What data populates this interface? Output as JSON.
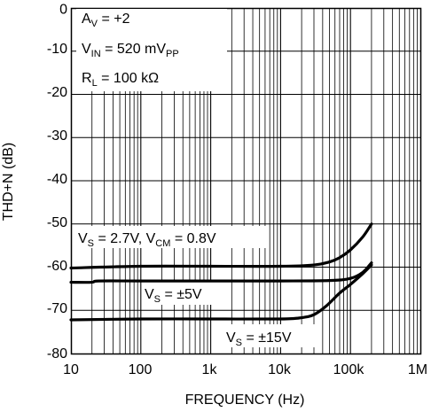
{
  "chart_data": {
    "type": "line",
    "title": "",
    "xlabel": "FREQUENCY (Hz)",
    "ylabel": "THD+N (dB)",
    "x_scale": "log",
    "xlim": [
      10,
      1000000
    ],
    "ylim": [
      -80,
      0
    ],
    "grid": true,
    "x_ticks": [
      {
        "value": 10,
        "label": "10"
      },
      {
        "value": 100,
        "label": "100"
      },
      {
        "value": 1000,
        "label": "1k"
      },
      {
        "value": 10000,
        "label": "10k"
      },
      {
        "value": 100000,
        "label": "100k"
      },
      {
        "value": 1000000,
        "label": "1M"
      }
    ],
    "y_ticks": [
      {
        "value": 0,
        "label": "0"
      },
      {
        "value": -10,
        "label": "-10"
      },
      {
        "value": -20,
        "label": "-20"
      },
      {
        "value": -30,
        "label": "-30"
      },
      {
        "value": -40,
        "label": "-40"
      },
      {
        "value": -50,
        "label": "-50"
      },
      {
        "value": -60,
        "label": "-60"
      },
      {
        "value": -70,
        "label": "-70"
      },
      {
        "value": -80,
        "label": "-80"
      }
    ],
    "conditions": {
      "av": {
        "main": "A",
        "sub": "V",
        "rest": " = +2"
      },
      "vin": {
        "main": "V",
        "sub": "IN",
        "rest": " = 520 mV",
        "sub2": "PP"
      },
      "rl": {
        "main": "R",
        "sub": "L",
        "rest": " = 100 kΩ"
      }
    },
    "series": [
      {
        "label": {
          "main": "V",
          "sub": "S",
          "mid": " = 2.7V, V",
          "sub2": "CM",
          "rest": " = 0.8V"
        },
        "points": [
          [
            10,
            -60.2
          ],
          [
            100,
            -59.8
          ],
          [
            1000,
            -59.8
          ],
          [
            10000,
            -59.8
          ],
          [
            30000,
            -59.5
          ],
          [
            50000,
            -58.8
          ],
          [
            70000,
            -57.8
          ],
          [
            100000,
            -56
          ],
          [
            150000,
            -53
          ],
          [
            200000,
            -50
          ]
        ]
      },
      {
        "label": {
          "main": "V",
          "sub": "S",
          "rest": " = ±5V"
        },
        "points": [
          [
            10,
            -63.5
          ],
          [
            20,
            -63.5
          ],
          [
            25,
            -63.2
          ],
          [
            100,
            -63.2
          ],
          [
            1000,
            -63.2
          ],
          [
            10000,
            -63.2
          ],
          [
            50000,
            -63.1
          ],
          [
            100000,
            -62.6
          ],
          [
            150000,
            -61.2
          ],
          [
            200000,
            -59
          ]
        ]
      },
      {
        "label": {
          "main": "V",
          "sub": "S",
          "rest": " = ±15V"
        },
        "points": [
          [
            10,
            -72.2
          ],
          [
            100,
            -72
          ],
          [
            1000,
            -72
          ],
          [
            10000,
            -72
          ],
          [
            20000,
            -71.7
          ],
          [
            30000,
            -71
          ],
          [
            45000,
            -69
          ],
          [
            70000,
            -66
          ],
          [
            100000,
            -64
          ],
          [
            150000,
            -61.5
          ],
          [
            200000,
            -59.5
          ]
        ]
      }
    ]
  }
}
